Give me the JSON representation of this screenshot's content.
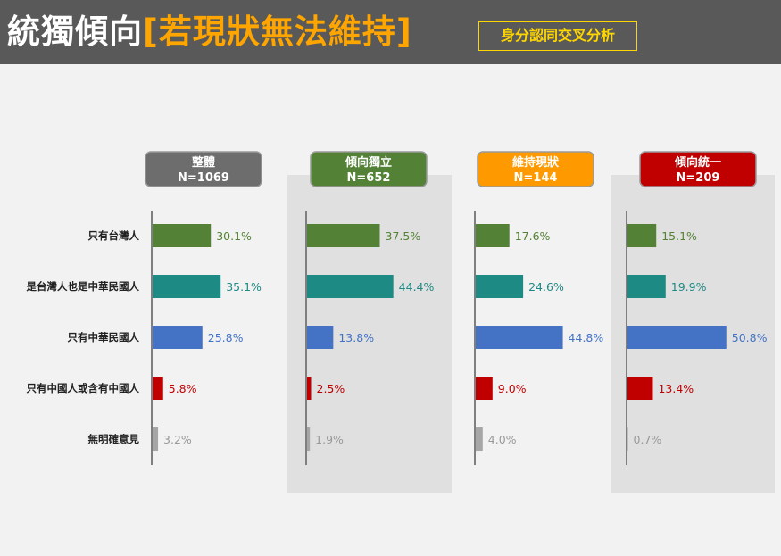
{
  "header": {
    "title": "統獨傾向",
    "title_accent": "[若現狀無法維持]",
    "subtitle": "身分認同交叉分析"
  },
  "chart_data": {
    "type": "bar",
    "orientation": "horizontal",
    "categories": [
      "只有台灣人",
      "是台灣人也是中華民國人",
      "只有中華民國人",
      "只有中國人或含有中國人",
      "無明確意見"
    ],
    "category_colors": [
      "#538135",
      "#1e8a84",
      "#4472c4",
      "#c00000",
      "#a6a6a6"
    ],
    "label_colors": [
      "#538135",
      "#1e8a84",
      "#4472c4",
      "#c00000",
      "#999999"
    ],
    "panels": [
      {
        "name": "整體",
        "n": "N=1069",
        "header_color": "#6d6d6d",
        "shaded": false,
        "values": [
          30.1,
          35.1,
          25.8,
          5.8,
          3.2
        ],
        "labels": [
          "30.1%",
          "35.1%",
          "25.8%",
          "5.8%",
          "3.2%"
        ]
      },
      {
        "name": "傾向獨立",
        "n": "N=652",
        "header_color": "#538135",
        "shaded": true,
        "values": [
          37.5,
          44.4,
          13.8,
          2.5,
          1.9
        ],
        "labels": [
          "37.5%",
          "44.4%",
          "13.8%",
          "2.5%",
          "1.9%"
        ]
      },
      {
        "name": "維持現狀",
        "n": "N=144",
        "header_color": "#ff9900",
        "shaded": false,
        "values": [
          17.6,
          24.6,
          44.8,
          9.0,
          4.0
        ],
        "labels": [
          "17.6%",
          "24.6%",
          "44.8%",
          "9.0%",
          "4.0%"
        ]
      },
      {
        "name": "傾向統一",
        "n": "N=209",
        "header_color": "#c00000",
        "shaded": true,
        "values": [
          15.1,
          19.9,
          50.8,
          13.4,
          0.7
        ],
        "labels": [
          "15.1%",
          "19.9%",
          "50.8%",
          "13.4%",
          "0.7%"
        ]
      }
    ]
  }
}
